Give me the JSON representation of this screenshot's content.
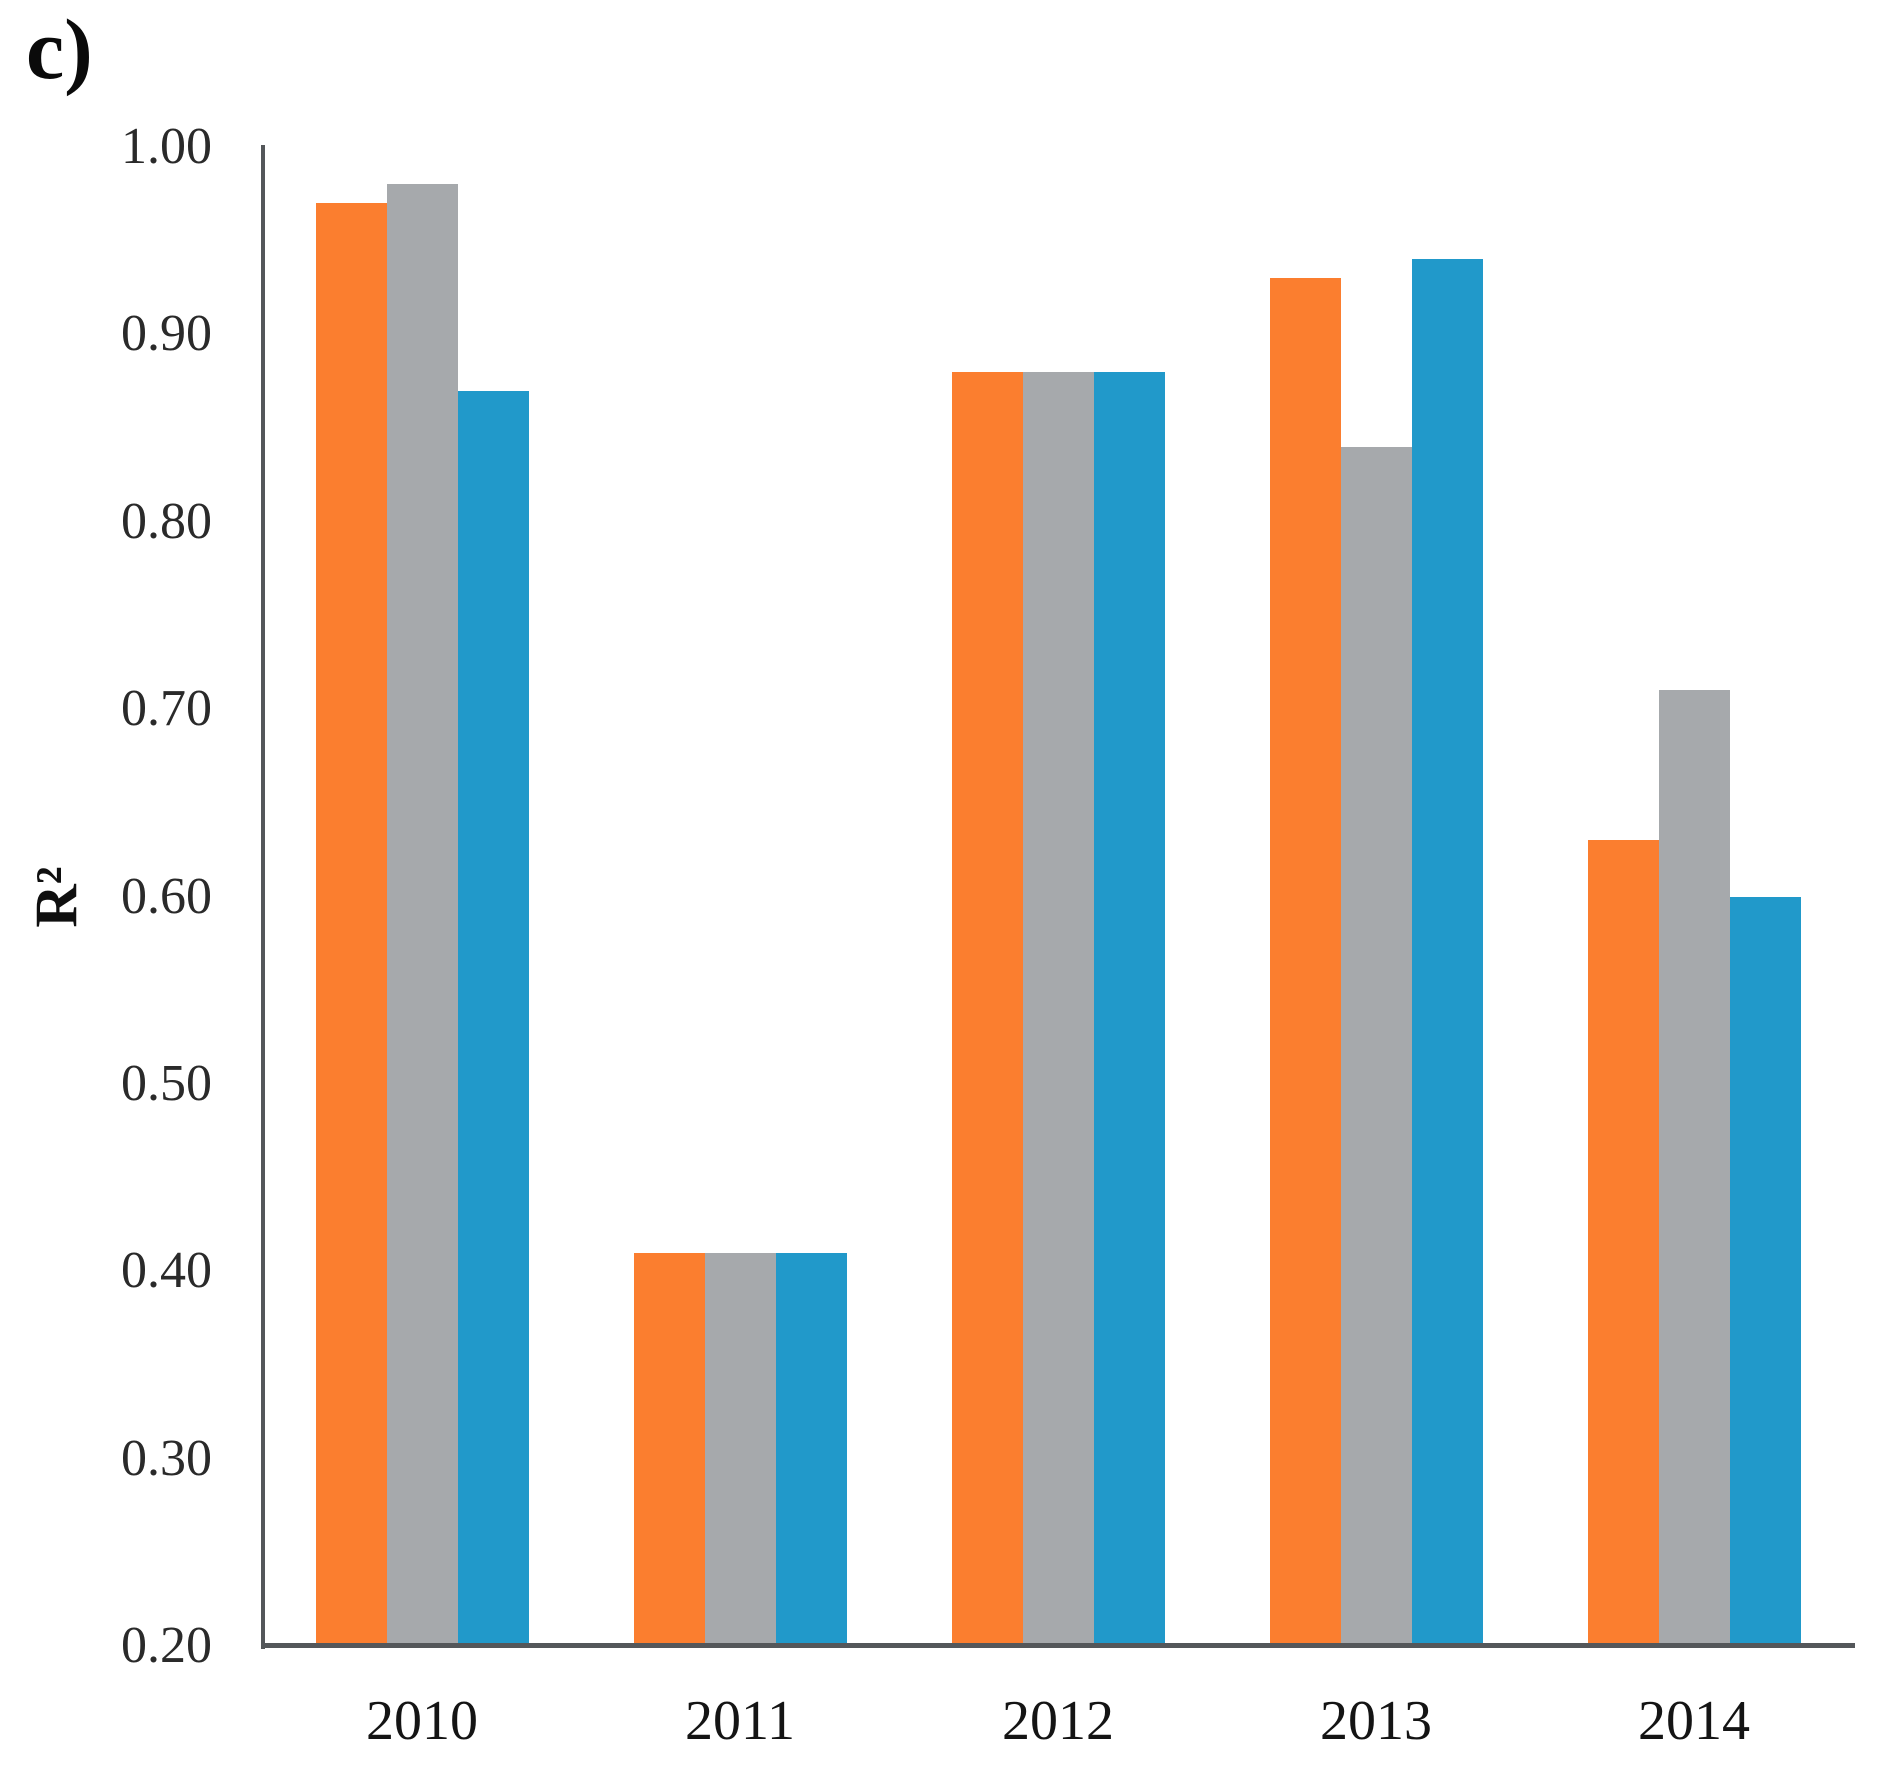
{
  "panel_label": "c)",
  "chart_data": {
    "type": "bar",
    "title": "",
    "xlabel": "",
    "ylabel": "R²",
    "categories": [
      "2010",
      "2011",
      "2012",
      "2013",
      "2014"
    ],
    "series": [
      {
        "name": "orange",
        "color": "#FB7E2F",
        "values": [
          0.97,
          0.41,
          0.88,
          0.93,
          0.63
        ]
      },
      {
        "name": "gray",
        "color": "#A6A9AC",
        "values": [
          0.98,
          0.41,
          0.88,
          0.84,
          0.71
        ]
      },
      {
        "name": "blue",
        "color": "#2199CA",
        "values": [
          0.87,
          0.41,
          0.88,
          0.94,
          0.6
        ]
      }
    ],
    "ylim": [
      0.2,
      1.0
    ],
    "ytick_labels": [
      "1.00",
      "0.90",
      "0.80",
      "0.70",
      "0.60",
      "0.50",
      "0.40",
      "0.30",
      "0.20"
    ],
    "grid": false,
    "legend_position": "none",
    "axis_color": "#54575A",
    "text_color": "#1F1F1F"
  }
}
